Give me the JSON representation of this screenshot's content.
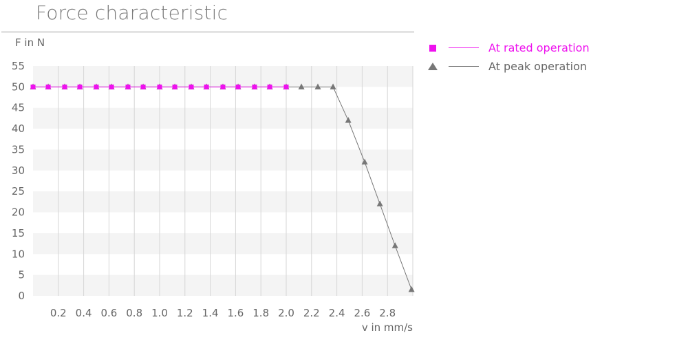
{
  "chart_data": {
    "type": "line",
    "title": "Force characteristic",
    "ylabel": "F in N",
    "xlabel": "v in mm/s",
    "ylim": [
      0,
      55
    ],
    "xlim": [
      0,
      3.0
    ],
    "x_ticks": [
      "0.2",
      "0.4",
      "0.6",
      "0.8",
      "1.0",
      "1.2",
      "1.4",
      "1.6",
      "1.8",
      "2.0",
      "2.2",
      "2.4",
      "2.6",
      "2.8"
    ],
    "y_ticks": [
      "55",
      "50",
      "45",
      "40",
      "35",
      "30",
      "25",
      "20",
      "15",
      "10",
      "5",
      "0"
    ],
    "legend_position": "right",
    "grid": true,
    "series": [
      {
        "name": "At rated operation",
        "color": "#ee11ee",
        "marker": "square",
        "x": [
          0,
          0.12,
          0.25,
          0.37,
          0.5,
          0.62,
          0.75,
          0.87,
          1.0,
          1.12,
          1.25,
          1.37,
          1.5,
          1.62,
          1.75,
          1.87,
          2.0
        ],
        "y": [
          50,
          50,
          50,
          50,
          50,
          50,
          50,
          50,
          50,
          50,
          50,
          50,
          50,
          50,
          50,
          50,
          50
        ]
      },
      {
        "name": "At peak operation",
        "color": "#777777",
        "marker": "triangle",
        "x": [
          0,
          0.12,
          0.25,
          0.37,
          0.5,
          0.62,
          0.75,
          0.87,
          1.0,
          1.12,
          1.25,
          1.37,
          1.5,
          1.62,
          1.75,
          1.87,
          2.0,
          2.12,
          2.25,
          2.37,
          2.49,
          2.62,
          2.74,
          2.86,
          2.99
        ],
        "y": [
          50,
          50,
          50,
          50,
          50,
          50,
          50,
          50,
          50,
          50,
          50,
          50,
          50,
          50,
          50,
          50,
          50,
          50,
          50,
          50,
          42,
          32,
          22,
          12,
          1.5
        ]
      }
    ]
  }
}
